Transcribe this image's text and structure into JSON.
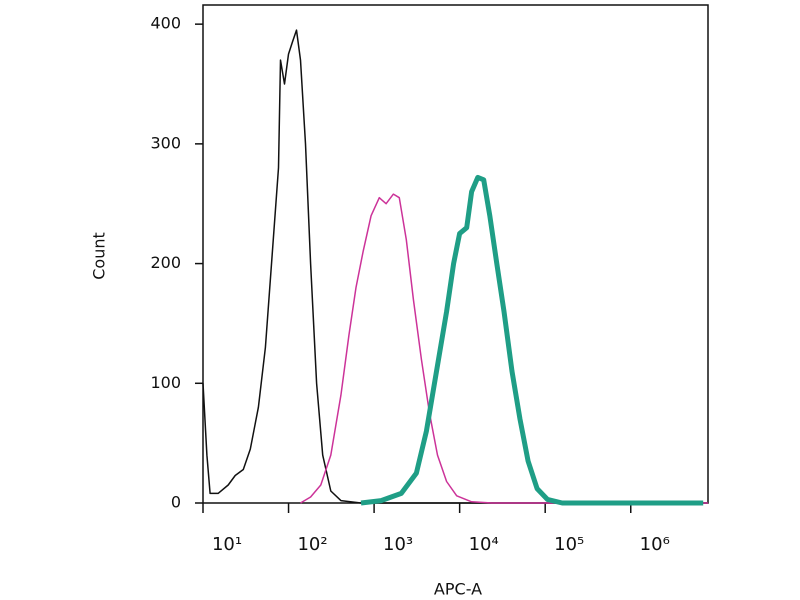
{
  "chart_data": {
    "type": "line",
    "xlabel": "APC-A",
    "ylabel": "Count",
    "xscale": "log",
    "xlim": [
      10,
      8000000
    ],
    "ylim": [
      0,
      416
    ],
    "xticks": [
      {
        "value": 10,
        "label": "10¹"
      },
      {
        "value": 100,
        "label": "10²"
      },
      {
        "value": 1000,
        "label": "10³"
      },
      {
        "value": 10000,
        "label": "10⁴"
      },
      {
        "value": 100000,
        "label": "10⁵"
      },
      {
        "value": 1000000,
        "label": "10⁶"
      }
    ],
    "yticks": [
      0,
      100,
      200,
      300,
      400
    ],
    "grid": false,
    "series": [
      {
        "color": "#111111",
        "width": 1.5,
        "x": [
          10,
          11.1,
          12.1,
          15,
          19.7,
          23.8,
          29.6,
          35.7,
          44.4,
          53.6,
          64.8,
          76.3,
          80.5,
          89.7,
          100,
          111,
          124,
          138,
          158,
          181,
          213,
          251,
          312,
          409,
          703,
          8000000
        ],
        "values": [
          100,
          40,
          8,
          8,
          15,
          23,
          28,
          45,
          80,
          130,
          210,
          280,
          370,
          350,
          375,
          385,
          395,
          370,
          300,
          200,
          100,
          40,
          10,
          2,
          0,
          0
        ]
      },
      {
        "color": "#cc3399",
        "width": 1.5,
        "x": [
          138,
          181,
          238,
          312,
          409,
          508,
          614,
          743,
          923,
          1150,
          1380,
          1680,
          1970,
          2380,
          2880,
          3570,
          4440,
          5510,
          7030,
          9230,
          13800,
          23800,
          8000000
        ],
        "values": [
          0,
          5,
          15,
          40,
          90,
          140,
          180,
          210,
          240,
          255,
          250,
          258,
          255,
          220,
          170,
          120,
          75,
          40,
          18,
          6,
          1,
          0,
          0
        ]
      },
      {
        "color": "#1f9e86",
        "width": 5,
        "x": [
          703,
          1210,
          2080,
          3120,
          4090,
          5360,
          7030,
          8490,
          10000,
          12100,
          13800,
          16300,
          19100,
          22500,
          27200,
          33000,
          40900,
          50800,
          63100,
          80500,
          106000,
          158000,
          469000,
          7030000
        ],
        "values": [
          0,
          2,
          8,
          25,
          60,
          110,
          160,
          200,
          225,
          230,
          260,
          272,
          270,
          240,
          200,
          160,
          110,
          70,
          35,
          12,
          3,
          0,
          0,
          0
        ]
      }
    ]
  }
}
